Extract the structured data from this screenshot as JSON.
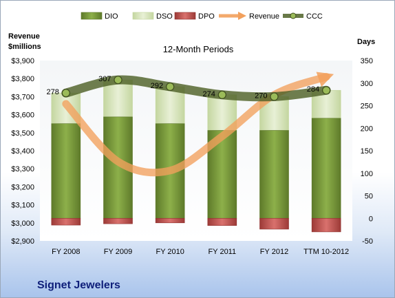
{
  "company": "Signet Jewelers",
  "chart_data": {
    "type": "bar",
    "subtitle": "12-Month Periods",
    "categories": [
      "FY 2008",
      "FY 2009",
      "FY 2010",
      "FY 2011",
      "FY 2012",
      "TTM 10-2012"
    ],
    "left_axis": {
      "title_line1": "Revenue",
      "title_line2": "$millions",
      "min": 2900,
      "max": 3900,
      "step": 100,
      "ticks": [
        "$2,900",
        "$3,000",
        "$3,100",
        "$3,200",
        "$3,300",
        "$3,400",
        "$3,500",
        "$3,600",
        "$3,700",
        "$3,800",
        "$3,900"
      ]
    },
    "right_axis": {
      "title": "Days",
      "min": -50,
      "max": 350,
      "step": 50,
      "ticks": [
        "-50",
        "0",
        "50",
        "100",
        "150",
        "200",
        "250",
        "300",
        "350"
      ]
    },
    "series": [
      {
        "name": "DIO",
        "kind": "stacked-bar",
        "axis": "right",
        "color": "#77933c",
        "values": [
          210,
          225,
          210,
          195,
          195,
          222
        ]
      },
      {
        "name": "DSO",
        "kind": "stacked-bar",
        "axis": "right",
        "color": "#d7e4bd",
        "values": [
          68,
          82,
          82,
          79,
          75,
          62
        ]
      },
      {
        "name": "DPO",
        "kind": "bar-negative",
        "axis": "right",
        "color": "#c0504d",
        "values": [
          -15,
          -12,
          -10,
          -16,
          -24,
          -30
        ]
      },
      {
        "name": "Revenue",
        "kind": "line",
        "axis": "left",
        "color": "#f79646",
        "values": [
          3660,
          3340,
          3290,
          3480,
          3710,
          3810
        ]
      },
      {
        "name": "CCC",
        "kind": "line-markers",
        "axis": "right",
        "color": "#4f6228",
        "values": [
          278,
          307,
          292,
          274,
          270,
          284
        ],
        "labels": [
          "278",
          "307",
          "292",
          "274",
          "270",
          "284"
        ]
      }
    ],
    "legend_position": "top",
    "grid": false
  }
}
